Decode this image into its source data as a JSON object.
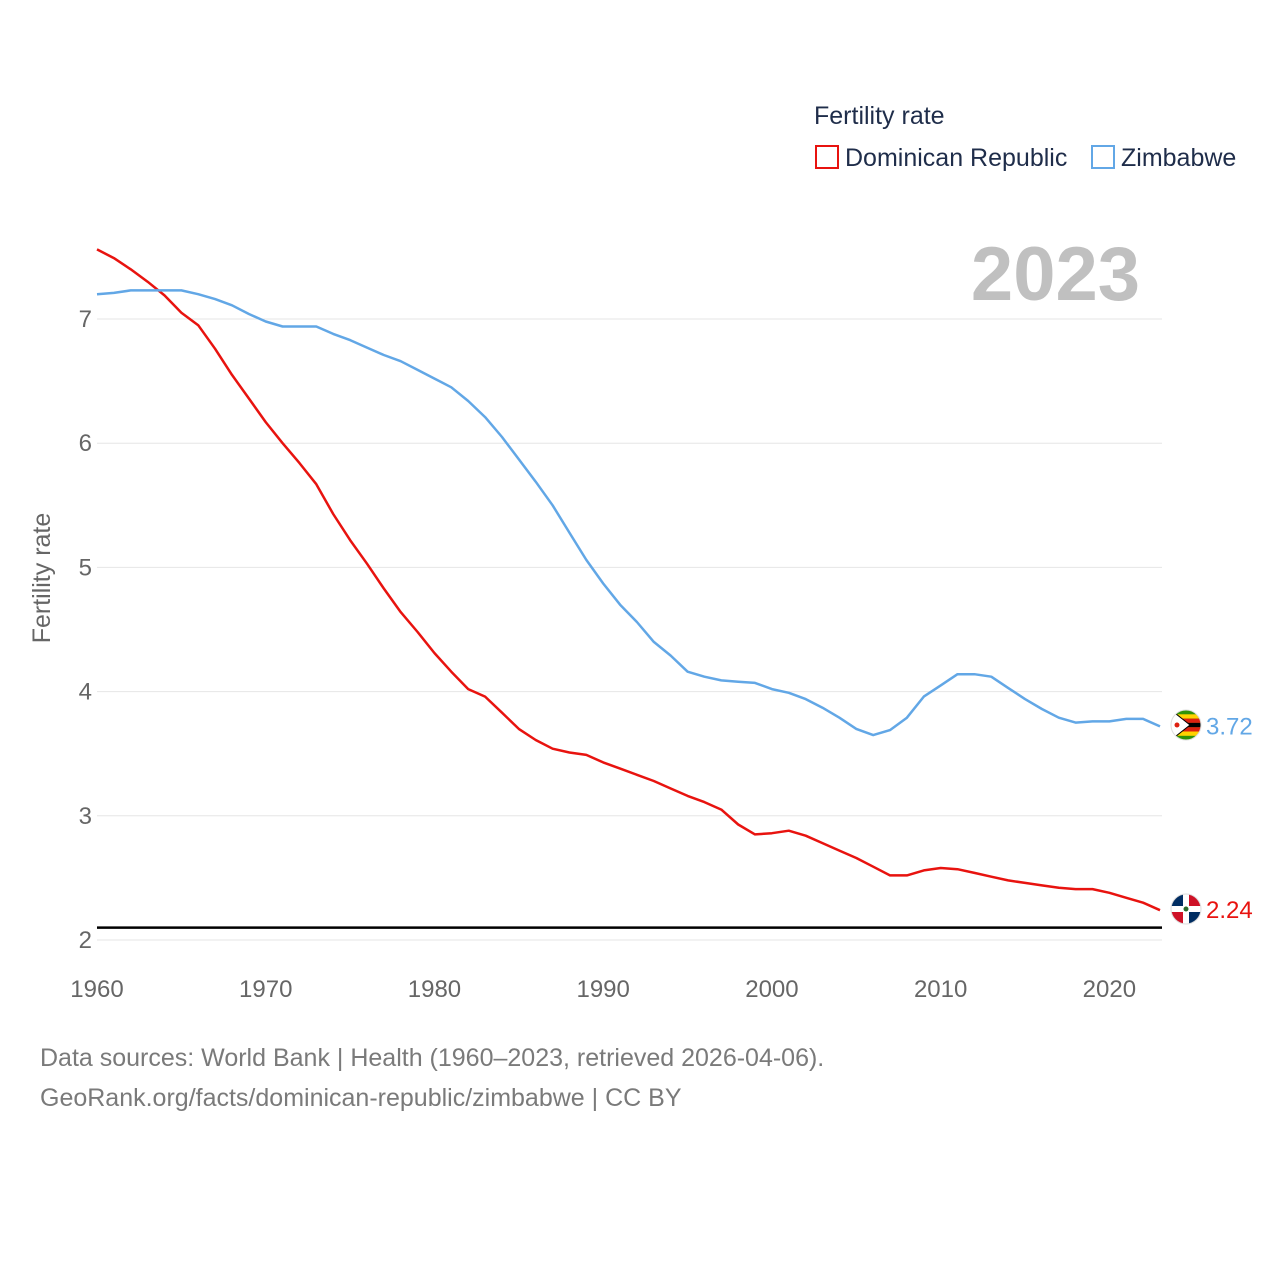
{
  "chart_data": {
    "type": "line",
    "legend_title": "Fertility rate",
    "legend_position": "top-right",
    "ylabel": "Fertility rate",
    "xlabel": "",
    "year_label": "2023",
    "ylim": [
      1.95,
      7.6
    ],
    "xlim": [
      1960,
      2023
    ],
    "yticks": [
      2,
      3,
      4,
      5,
      6,
      7
    ],
    "ytick_labels": [
      "2",
      "3",
      "4",
      "5",
      "6",
      "7"
    ],
    "xticks": [
      1960,
      1970,
      1980,
      1990,
      2000,
      2010,
      2020
    ],
    "xtick_labels": [
      "1960",
      "1970",
      "1980",
      "1990",
      "2000",
      "2010",
      "2020"
    ],
    "reference_line": 2.1,
    "grid": true,
    "x": [
      1960,
      1961,
      1962,
      1963,
      1964,
      1965,
      1966,
      1967,
      1968,
      1969,
      1970,
      1971,
      1972,
      1973,
      1974,
      1975,
      1976,
      1977,
      1978,
      1979,
      1980,
      1981,
      1982,
      1983,
      1984,
      1985,
      1986,
      1987,
      1988,
      1989,
      1990,
      1991,
      1992,
      1993,
      1994,
      1995,
      1996,
      1997,
      1998,
      1999,
      2000,
      2001,
      2002,
      2003,
      2004,
      2005,
      2006,
      2007,
      2008,
      2009,
      2010,
      2011,
      2012,
      2013,
      2014,
      2015,
      2016,
      2017,
      2018,
      2019,
      2020,
      2021,
      2022,
      2023
    ],
    "series": [
      {
        "name": "Dominican Republic",
        "color": "#e8130f",
        "end_label": "2.24",
        "flag": "dominican-republic",
        "values": [
          7.56,
          7.49,
          7.4,
          7.3,
          7.19,
          7.05,
          6.95,
          6.76,
          6.55,
          6.36,
          6.17,
          6.0,
          5.84,
          5.67,
          5.43,
          5.22,
          5.03,
          4.83,
          4.64,
          4.48,
          4.31,
          4.16,
          4.02,
          3.96,
          3.83,
          3.7,
          3.61,
          3.54,
          3.51,
          3.49,
          3.43,
          3.38,
          3.33,
          3.28,
          3.22,
          3.16,
          3.11,
          3.05,
          2.93,
          2.85,
          2.86,
          2.88,
          2.84,
          2.78,
          2.72,
          2.66,
          2.59,
          2.52,
          2.52,
          2.56,
          2.58,
          2.57,
          2.54,
          2.51,
          2.48,
          2.46,
          2.44,
          2.42,
          2.41,
          2.41,
          2.38,
          2.34,
          2.3,
          2.24
        ]
      },
      {
        "name": "Zimbabwe",
        "color": "#62a7e6",
        "end_label": "3.72",
        "flag": "zimbabwe",
        "values": [
          7.2,
          7.21,
          7.23,
          7.23,
          7.23,
          7.23,
          7.2,
          7.16,
          7.11,
          7.04,
          6.98,
          6.94,
          6.94,
          6.94,
          6.88,
          6.83,
          6.77,
          6.71,
          6.66,
          6.59,
          6.52,
          6.45,
          6.34,
          6.21,
          6.05,
          5.87,
          5.69,
          5.5,
          5.28,
          5.06,
          4.87,
          4.7,
          4.56,
          4.4,
          4.29,
          4.16,
          4.12,
          4.09,
          4.08,
          4.07,
          4.02,
          3.99,
          3.94,
          3.87,
          3.79,
          3.7,
          3.65,
          3.69,
          3.79,
          3.96,
          4.05,
          4.14,
          4.14,
          4.12,
          4.03,
          3.94,
          3.86,
          3.79,
          3.75,
          3.76,
          3.76,
          3.78,
          3.78,
          3.72
        ]
      }
    ]
  },
  "footer": {
    "line1": "Data sources: World Bank | Health (1960–2023, retrieved 2026-04-06).",
    "line2": "GeoRank.org/facts/dominican-republic/zimbabwe | CC BY"
  }
}
